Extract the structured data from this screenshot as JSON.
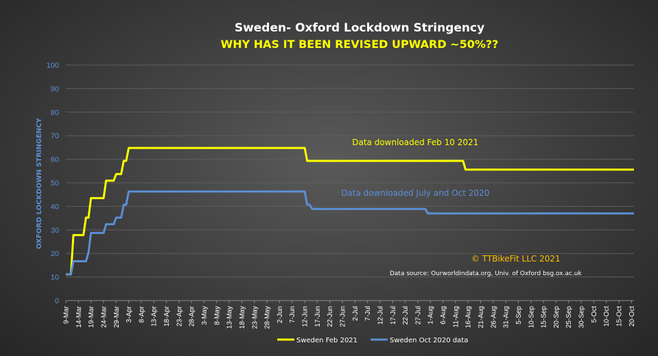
{
  "chart_data": {
    "type": "line",
    "title": "Sweden-  Oxford Lockdown Stringency",
    "subtitle": "WHY HAS IT BEEN REVISED UPWARD ~50%??",
    "xlabel": "",
    "ylabel": "OXFORD LOCKDOWN STRINGENCY",
    "ylim": [
      0,
      100
    ],
    "yticks": [
      0,
      10,
      20,
      30,
      40,
      50,
      60,
      70,
      80,
      90,
      100
    ],
    "xlim": [
      "2020-03-09",
      "2020-10-21"
    ],
    "grid": true,
    "legend_position": "bottom",
    "x_tick_labels": [
      "9-Mar",
      "14-Mar",
      "19-Mar",
      "24-Mar",
      "29-Mar",
      "3-Apr",
      "8-Apr",
      "13-Apr",
      "18-Apr",
      "23-Apr",
      "28-Apr",
      "3-May",
      "8-May",
      "13-May",
      "18-May",
      "23-May",
      "28-May",
      "2-Jun",
      "7-Jun",
      "12-Jun",
      "17-Jun",
      "22-Jun",
      "27-Jun",
      "2-Jul",
      "7-Jul",
      "12-Jul",
      "17-Jul",
      "22-Jul",
      "27-Jul",
      "1-Aug",
      "6-Aug",
      "11-Aug",
      "16-Aug",
      "21-Aug",
      "26-Aug",
      "31-Aug",
      "5-Sep",
      "10-Sep",
      "15-Sep",
      "20-Sep",
      "25-Sep",
      "30-Sep",
      "5-Oct",
      "10-Oct",
      "15-Oct",
      "20-Oct"
    ],
    "series": [
      {
        "name": "Sweden Feb 2021",
        "color": "#ffff00",
        "points": [
          [
            "2020-03-09",
            11.1
          ],
          [
            "2020-03-11",
            11.1
          ],
          [
            "2020-03-12",
            27.8
          ],
          [
            "2020-03-16",
            27.8
          ],
          [
            "2020-03-17",
            35.2
          ],
          [
            "2020-03-18",
            35.2
          ],
          [
            "2020-03-19",
            43.5
          ],
          [
            "2020-03-24",
            43.5
          ],
          [
            "2020-03-25",
            50.9
          ],
          [
            "2020-03-28",
            50.9
          ],
          [
            "2020-03-29",
            53.7
          ],
          [
            "2020-03-31",
            53.7
          ],
          [
            "2020-04-01",
            59.3
          ],
          [
            "2020-04-02",
            59.3
          ],
          [
            "2020-04-03",
            64.8
          ],
          [
            "2020-06-12",
            64.8
          ],
          [
            "2020-06-13",
            59.3
          ],
          [
            "2020-08-14",
            59.3
          ],
          [
            "2020-08-15",
            55.6
          ],
          [
            "2020-10-21",
            55.6
          ]
        ]
      },
      {
        "name": "Sweden Oct 2020 data",
        "color": "#5b8fd6",
        "points": [
          [
            "2020-03-09",
            11.1
          ],
          [
            "2020-03-11",
            11.1
          ],
          [
            "2020-03-12",
            16.7
          ],
          [
            "2020-03-17",
            16.7
          ],
          [
            "2020-03-18",
            20.4
          ],
          [
            "2020-03-19",
            28.7
          ],
          [
            "2020-03-24",
            28.7
          ],
          [
            "2020-03-25",
            32.4
          ],
          [
            "2020-03-28",
            32.4
          ],
          [
            "2020-03-29",
            35.2
          ],
          [
            "2020-03-31",
            35.2
          ],
          [
            "2020-04-01",
            40.7
          ],
          [
            "2020-04-02",
            40.7
          ],
          [
            "2020-04-03",
            46.3
          ],
          [
            "2020-06-12",
            46.3
          ],
          [
            "2020-06-13",
            40.7
          ],
          [
            "2020-06-14",
            40.7
          ],
          [
            "2020-06-15",
            38.9
          ],
          [
            "2020-07-30",
            38.9
          ],
          [
            "2020-07-31",
            37.0
          ],
          [
            "2020-10-21",
            37.0
          ]
        ]
      }
    ],
    "annotations": [
      {
        "text": "Data downloaded Feb 10 2021",
        "x": "2020-07-26",
        "y": 66.0,
        "color": "#ffff00"
      },
      {
        "text": "Data downloaded July and Oct 2020",
        "x": "2020-07-26",
        "y": 44.5,
        "color": "#5b8fd6"
      },
      {
        "text": "© TTBikeFit LLC 2021",
        "x": "2020-09-04",
        "y": 16.6,
        "color": "#ffc000"
      },
      {
        "text": "Data source: Ourworldindata.org, Univ. of Oxford bsg.ox.ac.uk",
        "x": "2020-08-23",
        "y": 10.8,
        "color": "#ffffff"
      }
    ]
  }
}
